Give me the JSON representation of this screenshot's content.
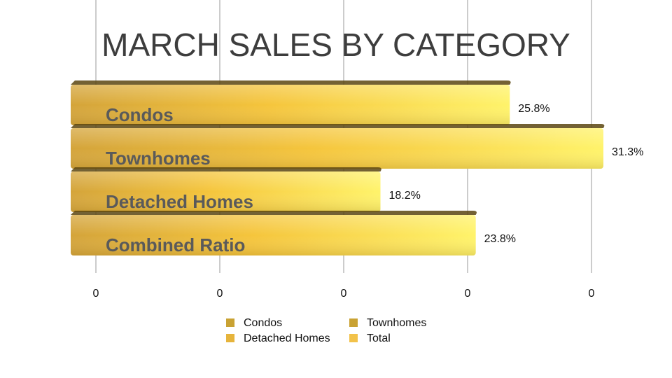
{
  "chart_data": {
    "type": "bar",
    "orientation": "horizontal",
    "title": "MARCH SALES BY CATEGORY",
    "categories": [
      "Condos",
      "Townhomes",
      "Detached Homes",
      "Combined Ratio"
    ],
    "values": [
      25.8,
      31.3,
      18.2,
      23.8
    ],
    "value_labels": [
      "25.8%",
      "31.3%",
      "18.2%",
      "23.8%"
    ],
    "x_tick_labels": [
      "0",
      "0",
      "0",
      "0",
      "0"
    ],
    "xlim": [
      0,
      32
    ],
    "grid": true,
    "legend": {
      "placement": "bottom",
      "entries": [
        {
          "label": "Condos",
          "color": "#c9a233"
        },
        {
          "label": "Townhomes",
          "color": "#c9a233"
        },
        {
          "label": "Detached Homes",
          "color": "#e6b43c"
        },
        {
          "label": "Total",
          "color": "#f2c24a"
        }
      ]
    },
    "colors": {
      "bar_light": "#fff36a",
      "bar_mid": "#f5c53c",
      "bar_dark": "#d4a43a",
      "bar_shadow": "#5a4510"
    }
  }
}
